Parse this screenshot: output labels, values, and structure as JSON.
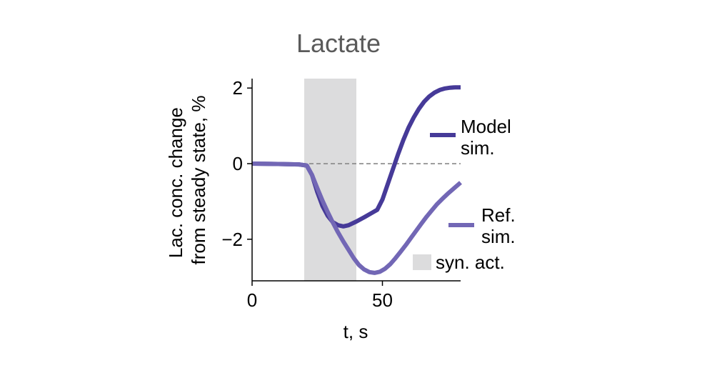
{
  "chart_data": {
    "type": "line",
    "title": "Lactate",
    "xlabel": "t, s",
    "ylabel_lines": [
      "Lac. conc. change",
      "from steady state, %"
    ],
    "xlim": [
      0,
      80
    ],
    "ylim": [
      -3.1,
      2.25
    ],
    "x_ticks": [
      0,
      50
    ],
    "x_tick_labels": [
      "0",
      "50"
    ],
    "y_ticks": [
      2,
      0,
      -2
    ],
    "y_tick_labels": [
      "2",
      "0",
      "−2"
    ],
    "grid": false,
    "reference_line": {
      "y": 0,
      "style": "dashed",
      "color": "#888888"
    },
    "shaded_region": {
      "x_start": 20,
      "x_end": 40,
      "label": "syn. act.",
      "color": "#dcdcdd"
    },
    "legend_placement": "right",
    "series": [
      {
        "name_lines": [
          "Model",
          "sim."
        ],
        "color": "#463a98",
        "x": [
          0,
          10,
          18,
          21,
          23,
          25,
          27,
          29,
          31,
          33,
          35,
          37,
          40,
          43,
          46,
          48,
          50,
          52,
          54,
          56,
          58,
          60,
          62,
          64,
          66,
          68,
          70,
          72,
          74,
          76,
          78,
          80
        ],
        "y": [
          0,
          -0.01,
          -0.02,
          -0.05,
          -0.3,
          -0.75,
          -1.12,
          -1.38,
          -1.55,
          -1.63,
          -1.66,
          -1.63,
          -1.53,
          -1.42,
          -1.3,
          -1.22,
          -0.95,
          -0.55,
          -0.15,
          0.25,
          0.62,
          0.95,
          1.22,
          1.45,
          1.64,
          1.78,
          1.88,
          1.95,
          1.99,
          2.01,
          2.02,
          2.02
        ]
      },
      {
        "name_lines": [
          "Ref.",
          "sim."
        ],
        "color": "#7267b5",
        "x": [
          0,
          10,
          18,
          21,
          23,
          25,
          27,
          29,
          31,
          33,
          35,
          37,
          39,
          41,
          43,
          45,
          47,
          49,
          51,
          53,
          55,
          57,
          59,
          61,
          63,
          65,
          67,
          69,
          71,
          73,
          75,
          77,
          80
        ],
        "y": [
          0,
          -0.01,
          -0.02,
          -0.05,
          -0.3,
          -0.65,
          -0.98,
          -1.28,
          -1.56,
          -1.82,
          -2.06,
          -2.28,
          -2.5,
          -2.68,
          -2.8,
          -2.87,
          -2.89,
          -2.86,
          -2.78,
          -2.66,
          -2.5,
          -2.33,
          -2.15,
          -1.96,
          -1.77,
          -1.58,
          -1.4,
          -1.23,
          -1.07,
          -0.93,
          -0.8,
          -0.68,
          -0.5
        ]
      }
    ]
  }
}
